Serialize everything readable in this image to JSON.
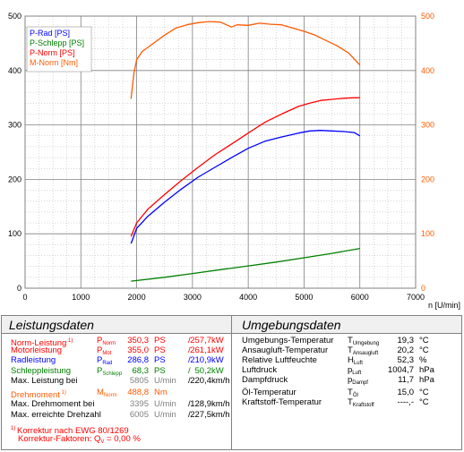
{
  "chart_data": {
    "type": "line",
    "x_unit_label": "n [U/min]",
    "xlim": [
      0,
      7000
    ],
    "ylim_left": [
      0,
      500
    ],
    "ylim_right": [
      0,
      500
    ],
    "x_ticks": [
      "0",
      "1000",
      "2000",
      "3000",
      "4000",
      "5000",
      "6000",
      "7000"
    ],
    "y_ticks_left": [
      "0",
      "100",
      "200",
      "300",
      "400",
      "500"
    ],
    "y_ticks_right": [
      "0",
      "100",
      "200",
      "300",
      "400",
      "500"
    ],
    "grid": true,
    "legend_position": "top-left",
    "series": [
      {
        "name": "P-Rad [PS]",
        "color": "#0000ff",
        "x": [
          1900,
          2000,
          2200,
          2500,
          2800,
          3100,
          3400,
          3700,
          4000,
          4300,
          4600,
          4900,
          5100,
          5300,
          5500,
          5700,
          5900,
          6000
        ],
        "y": [
          82,
          110,
          132,
          158,
          182,
          204,
          222,
          240,
          257,
          270,
          278,
          285,
          289,
          290,
          289,
          288,
          286,
          280
        ]
      },
      {
        "name": "P-Schlepp [PS]",
        "color": "#008000",
        "x": [
          1900,
          2500,
          3000,
          3500,
          4000,
          4500,
          5000,
          5500,
          6000
        ],
        "y": [
          13,
          20,
          27,
          34,
          41,
          48,
          56,
          64,
          73
        ]
      },
      {
        "name": "P-Norm [PS]",
        "color": "#ff0000",
        "x": [
          1900,
          2000,
          2200,
          2500,
          2800,
          3100,
          3400,
          3700,
          4000,
          4300,
          4600,
          4900,
          5100,
          5300,
          5500,
          5700,
          5900,
          6000
        ],
        "y": [
          95,
          120,
          145,
          172,
          198,
          222,
          245,
          265,
          285,
          305,
          320,
          334,
          340,
          345,
          347,
          349,
          350,
          350
        ]
      },
      {
        "name": "M-Norm [Nm]",
        "color": "#ff5a00",
        "x": [
          1900,
          1950,
          2000,
          2100,
          2300,
          2500,
          2700,
          2900,
          3100,
          3300,
          3500,
          3700,
          3800,
          4000,
          4200,
          4400,
          4600,
          4800,
          5000,
          5200,
          5400,
          5600,
          5800,
          6000
        ],
        "y": [
          348,
          395,
          420,
          435,
          450,
          465,
          478,
          484,
          488,
          490,
          489,
          480,
          484,
          483,
          487,
          485,
          484,
          478,
          472,
          465,
          455,
          445,
          432,
          410
        ]
      }
    ]
  },
  "leistung": {
    "title": "Leistungsdaten",
    "rows": [
      {
        "label": "Norm-Leistung",
        "sup": "1)",
        "sym": "P",
        "sub": "Norm",
        "v1": "350,3",
        "u1": "PS",
        "sep": "/",
        "v2": "257,7",
        "u2": "kW",
        "color": "red"
      },
      {
        "label": "Motorleistung",
        "sup": "",
        "sym": "P",
        "sub": "Mot",
        "v1": "355,0",
        "u1": "PS",
        "sep": "/",
        "v2": "261,1",
        "u2": "kW",
        "color": "red"
      },
      {
        "label": "Radleistung",
        "sup": "",
        "sym": "P",
        "sub": "Rad",
        "v1": "286,8",
        "u1": "PS",
        "sep": "/",
        "v2": "210,9",
        "u2": "kW",
        "color": "blue"
      },
      {
        "label": "Schleppleistung",
        "sup": "",
        "sym": "P",
        "sub": "Schlepp",
        "v1": "68,3",
        "u1": "PS",
        "sep": "/",
        "v2": "50,2",
        "u2": "kW",
        "color": "green"
      },
      {
        "label": "Max. Leistung bei",
        "sup": "",
        "sym": "",
        "sub": "",
        "v1": "5805",
        "u1": "U/min",
        "sep": "/",
        "v2": "220,4",
        "u2": "km/h",
        "color": "black"
      }
    ],
    "rows2": [
      {
        "label": "Drehmoment",
        "sup": "1)",
        "sym": "M",
        "sub": "Norm",
        "v1": "488,8",
        "u1": "Nm",
        "sep": "",
        "v2": "",
        "u2": "",
        "color": "orange"
      },
      {
        "label": "Max. Drehmoment bei",
        "sup": "",
        "sym": "",
        "sub": "",
        "v1": "3395",
        "u1": "U/min",
        "sep": "/",
        "v2": "128,9",
        "u2": "km/h",
        "color": "black"
      },
      {
        "label": "Max. erreichte Drehzahl",
        "sup": "",
        "sym": "",
        "sub": "",
        "v1": "6005",
        "u1": "U/min",
        "sep": "/",
        "v2": "227,5",
        "u2": "km/h",
        "color": "black"
      }
    ],
    "footnote1_sup": "1)",
    "footnote1": "Korrektur nach EWG 80/1269",
    "footnote2": "Korrektur-Faktoren:",
    "footnote2_sym": "Q",
    "footnote2_sub": "V",
    "footnote2_val": "=   0,00 %"
  },
  "umgebung": {
    "title": "Umgebungsdaten",
    "rows": [
      {
        "label": "Umgebungs-Temperatur",
        "sym": "T",
        "sub": "Umgebung",
        "val": "19,3",
        "unit": "°C"
      },
      {
        "label": "Ansaugluft-Temperatur",
        "sym": "T",
        "sub": "Ansaugluft",
        "val": "20,2",
        "unit": "°C"
      },
      {
        "label": "Relative Luftfeuchte",
        "sym": "H",
        "sub": "Luft",
        "val": "52,3",
        "unit": "%"
      },
      {
        "label": "Luftdruck",
        "sym": "p",
        "sub": "Luft",
        "val": "1004,7",
        "unit": "hPa"
      },
      {
        "label": "Dampfdruck",
        "sym": "p",
        "sub": "Dampf",
        "val": "11,7",
        "unit": "hPa"
      },
      {
        "label": "Öl-Temperatur",
        "sym": "T",
        "sub": "Öl",
        "val": "15,0",
        "unit": "°C"
      },
      {
        "label": "Kraftstoff-Temperatur",
        "sym": "T",
        "sub": "Kraftstoff",
        "val": "----,-",
        "unit": "°C"
      }
    ]
  }
}
